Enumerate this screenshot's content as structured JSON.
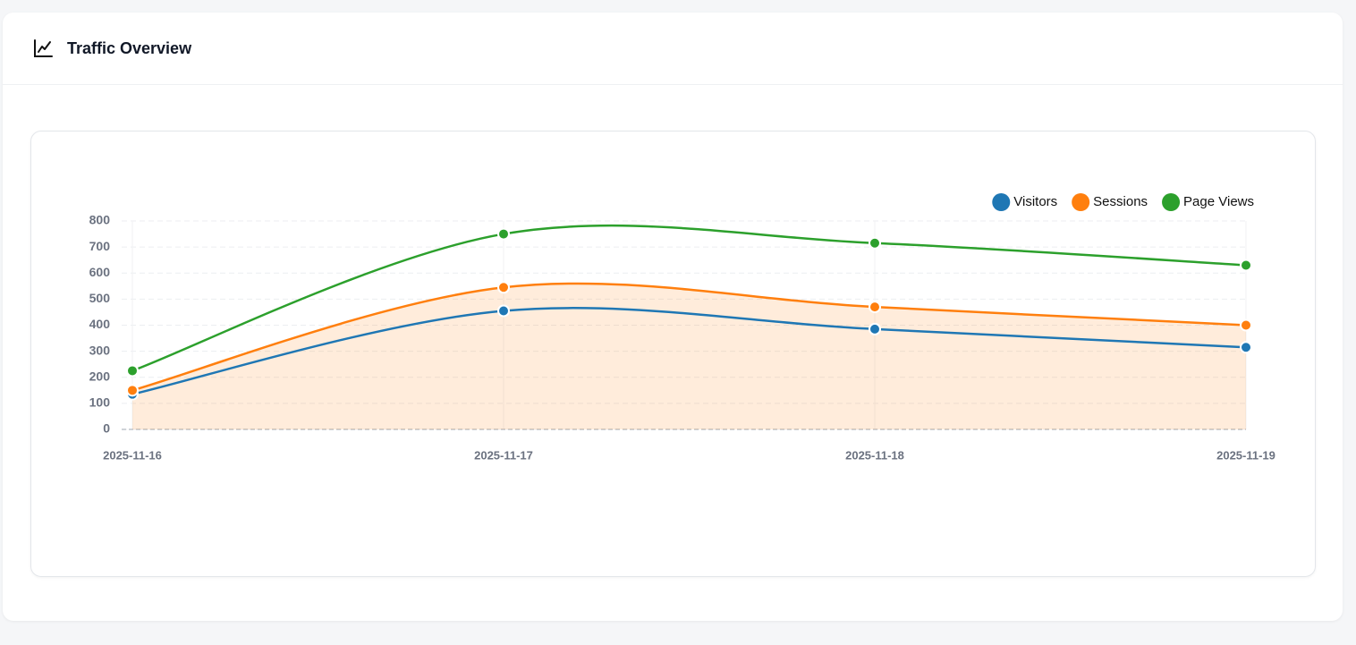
{
  "chart_data": {
    "type": "line",
    "title": "Traffic Overview",
    "categories": [
      "2025-11-16",
      "2025-11-17",
      "2025-11-18",
      "2025-11-19"
    ],
    "series": [
      {
        "name": "Visitors",
        "color": "#1f77b4",
        "values": [
          135,
          455,
          385,
          315
        ],
        "fill": false
      },
      {
        "name": "Sessions",
        "color": "#ff7f0e",
        "values": [
          150,
          545,
          470,
          400
        ],
        "fill": true
      },
      {
        "name": "Page Views",
        "color": "#2ca02c",
        "values": [
          225,
          750,
          715,
          630
        ],
        "fill": false
      }
    ],
    "ylim": [
      0,
      800
    ],
    "yticks": [
      0,
      100,
      200,
      300,
      400,
      500,
      600,
      700,
      800
    ],
    "grid": true,
    "legend": "top-right"
  }
}
